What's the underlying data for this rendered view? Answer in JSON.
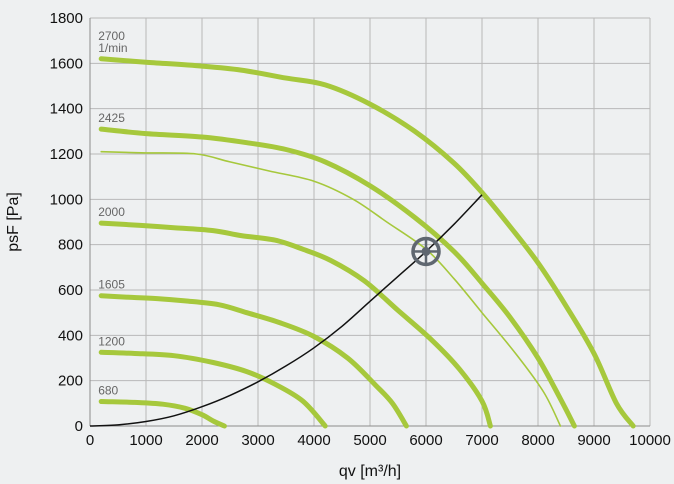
{
  "chart_data": {
    "type": "line",
    "title": "",
    "xlabel": "qv [m³/h]",
    "ylabel": "psF [Pa]",
    "xlim": [
      0,
      10000
    ],
    "ylim": [
      0,
      1800
    ],
    "x_ticks": [
      0,
      1000,
      2000,
      3000,
      4000,
      5000,
      6000,
      7000,
      8000,
      9000,
      10000
    ],
    "y_ticks": [
      0,
      200,
      400,
      600,
      800,
      1000,
      1200,
      1400,
      1600,
      1800
    ],
    "grid": true,
    "colors": {
      "fan_curve": "#a6c83c",
      "system_curve": "#111111",
      "marker": "#5f6770",
      "grid": "#b8b8b8",
      "background": "#eef0f1"
    },
    "series": [
      {
        "name": "2700 1/min",
        "label_lines": [
          "2700",
          "1/min"
        ],
        "style": "thick",
        "points": [
          [
            200,
            1620
          ],
          [
            1000,
            1605
          ],
          [
            2000,
            1588
          ],
          [
            2700,
            1570
          ],
          [
            3500,
            1535
          ],
          [
            4200,
            1505
          ],
          [
            5000,
            1420
          ],
          [
            5800,
            1300
          ],
          [
            6500,
            1160
          ],
          [
            7000,
            1030
          ],
          [
            7500,
            880
          ],
          [
            8000,
            720
          ],
          [
            8500,
            530
          ],
          [
            9000,
            320
          ],
          [
            9400,
            100
          ],
          [
            9700,
            0
          ]
        ]
      },
      {
        "name": "2425",
        "label_lines": [
          "2425"
        ],
        "style": "thick",
        "points": [
          [
            200,
            1310
          ],
          [
            1000,
            1290
          ],
          [
            2000,
            1275
          ],
          [
            2800,
            1250
          ],
          [
            3500,
            1220
          ],
          [
            4200,
            1165
          ],
          [
            5000,
            1060
          ],
          [
            5800,
            920
          ],
          [
            6500,
            770
          ],
          [
            7000,
            630
          ],
          [
            7500,
            480
          ],
          [
            8000,
            300
          ],
          [
            8400,
            120
          ],
          [
            8650,
            0
          ]
        ]
      },
      {
        "name": "2425 (thin)",
        "label_lines": [],
        "style": "thin",
        "points": [
          [
            200,
            1210
          ],
          [
            1000,
            1205
          ],
          [
            1900,
            1200
          ],
          [
            2500,
            1165
          ],
          [
            3200,
            1125
          ],
          [
            4000,
            1080
          ],
          [
            4700,
            1000
          ],
          [
            5300,
            900
          ],
          [
            6000,
            780
          ],
          [
            6500,
            650
          ],
          [
            7000,
            500
          ],
          [
            7600,
            320
          ],
          [
            8100,
            150
          ],
          [
            8400,
            0
          ]
        ]
      },
      {
        "name": "2000",
        "label_lines": [
          "2000"
        ],
        "style": "thick",
        "points": [
          [
            200,
            895
          ],
          [
            900,
            885
          ],
          [
            1500,
            875
          ],
          [
            2200,
            862
          ],
          [
            2700,
            840
          ],
          [
            3300,
            820
          ],
          [
            3800,
            780
          ],
          [
            4300,
            730
          ],
          [
            4900,
            640
          ],
          [
            5500,
            510
          ],
          [
            6100,
            380
          ],
          [
            6600,
            250
          ],
          [
            7000,
            110
          ],
          [
            7150,
            0
          ]
        ]
      },
      {
        "name": "1605",
        "label_lines": [
          "1605"
        ],
        "style": "thick",
        "points": [
          [
            200,
            575
          ],
          [
            700,
            568
          ],
          [
            1200,
            562
          ],
          [
            1700,
            552
          ],
          [
            2300,
            535
          ],
          [
            2800,
            500
          ],
          [
            3400,
            455
          ],
          [
            4000,
            395
          ],
          [
            4600,
            300
          ],
          [
            5100,
            180
          ],
          [
            5400,
            100
          ],
          [
            5650,
            0
          ]
        ]
      },
      {
        "name": "1200",
        "label_lines": [
          "1200"
        ],
        "style": "thick",
        "points": [
          [
            200,
            325
          ],
          [
            800,
            320
          ],
          [
            1500,
            310
          ],
          [
            2200,
            280
          ],
          [
            2800,
            240
          ],
          [
            3300,
            185
          ],
          [
            3800,
            110
          ],
          [
            4200,
            0
          ]
        ]
      },
      {
        "name": "680",
        "label_lines": [
          "680"
        ],
        "style": "thick",
        "points": [
          [
            200,
            108
          ],
          [
            800,
            104
          ],
          [
            1300,
            96
          ],
          [
            1700,
            78
          ],
          [
            2000,
            50
          ],
          [
            2200,
            22
          ],
          [
            2400,
            0
          ]
        ]
      }
    ],
    "system_curve": {
      "name": "system",
      "points": [
        [
          0,
          0
        ],
        [
          500,
          5
        ],
        [
          1000,
          20
        ],
        [
          1500,
          45
        ],
        [
          2000,
          85
        ],
        [
          2500,
          135
        ],
        [
          3000,
          195
        ],
        [
          3500,
          265
        ],
        [
          4000,
          345
        ],
        [
          4500,
          440
        ],
        [
          5000,
          550
        ],
        [
          5500,
          660
        ],
        [
          6000,
          770
        ],
        [
          6500,
          890
        ],
        [
          7000,
          1020
        ]
      ]
    },
    "operating_point": {
      "x": 6000,
      "y": 770
    }
  }
}
